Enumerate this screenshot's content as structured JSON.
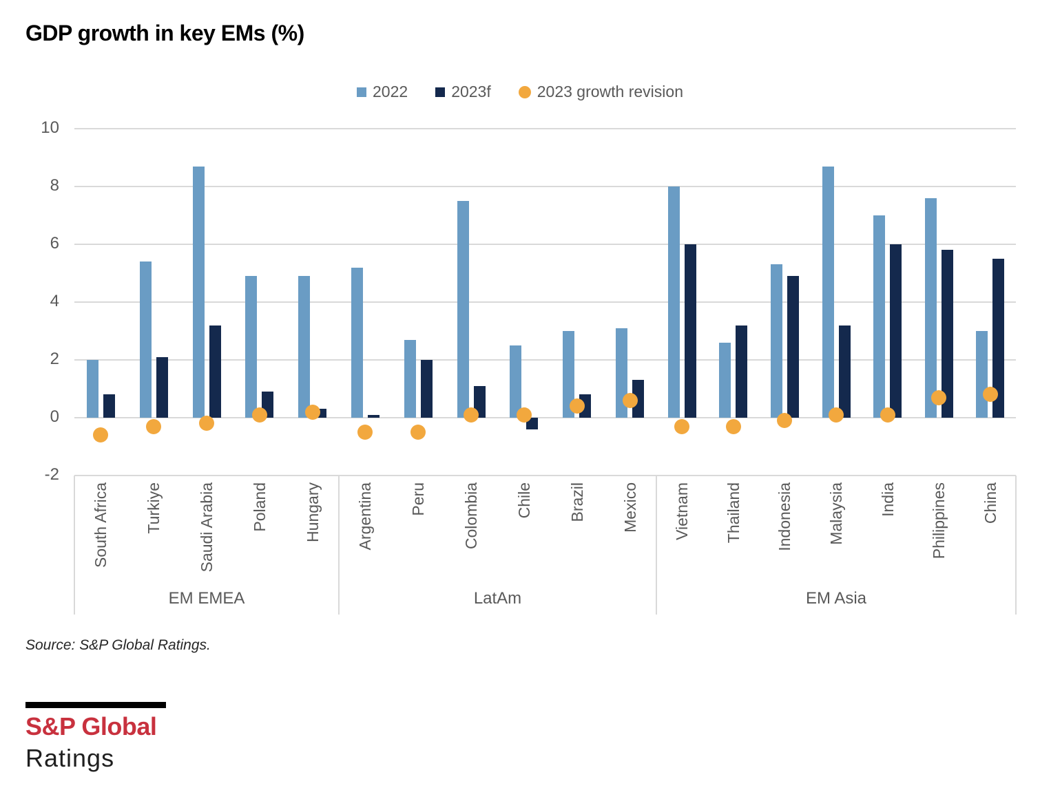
{
  "title": "GDP growth in key EMs (%)",
  "legend": [
    {
      "label": "2022",
      "color": "#6A9CC4",
      "shape": "square"
    },
    {
      "label": "2023f",
      "color": "#14294D",
      "shape": "square"
    },
    {
      "label": "2023 growth revision",
      "color": "#F2A83E",
      "shape": "circle"
    }
  ],
  "source": "Source: S&P Global Ratings.",
  "logo": {
    "line1": "S&P Global",
    "line2": "Ratings",
    "color": "#C8313E"
  },
  "colors": {
    "bar_2022": "#6A9CC4",
    "bar_2023f": "#14294D",
    "revision_dot": "#F2A83E",
    "gridline": "#D9D9D9",
    "axis_text": "#595959"
  },
  "chart_data": {
    "type": "bar",
    "title": "GDP growth in key EMs (%)",
    "ylabel": "",
    "xlabel": "",
    "ylim": [
      -2,
      10
    ],
    "yticks": [
      10,
      8,
      6,
      4,
      2,
      0,
      -2
    ],
    "grid": true,
    "legend_position": "top",
    "groups": [
      {
        "region": "EM EMEA",
        "countries": [
          "South Africa",
          "Turkiye",
          "Saudi Arabia",
          "Poland",
          "Hungary"
        ]
      },
      {
        "region": "LatAm",
        "countries": [
          "Argentina",
          "Peru",
          "Colombia",
          "Chile",
          "Brazil",
          "Mexico"
        ]
      },
      {
        "region": "EM Asia",
        "countries": [
          "Vietnam",
          "Thailand",
          "Indonesia",
          "Malaysia",
          "India",
          "Philippines",
          "China"
        ]
      }
    ],
    "categories": [
      "South Africa",
      "Turkiye",
      "Saudi Arabia",
      "Poland",
      "Hungary",
      "Argentina",
      "Peru",
      "Colombia",
      "Chile",
      "Brazil",
      "Mexico",
      "Vietnam",
      "Thailand",
      "Indonesia",
      "Malaysia",
      "India",
      "Philippines",
      "China"
    ],
    "series": [
      {
        "name": "2022",
        "type": "bar",
        "color": "#6A9CC4",
        "values": [
          2.0,
          5.4,
          8.7,
          4.9,
          4.9,
          5.2,
          2.7,
          7.5,
          2.5,
          3.0,
          3.1,
          8.0,
          2.6,
          5.3,
          8.7,
          7.0,
          7.6,
          3.0
        ]
      },
      {
        "name": "2023f",
        "type": "bar",
        "color": "#14294D",
        "values": [
          0.8,
          2.1,
          3.2,
          0.9,
          0.3,
          0.1,
          2.0,
          1.1,
          -0.4,
          0.8,
          1.3,
          6.0,
          3.2,
          4.9,
          3.2,
          6.0,
          5.8,
          5.5
        ]
      },
      {
        "name": "2023 growth revision",
        "type": "point",
        "color": "#F2A83E",
        "values": [
          -0.6,
          -0.3,
          -0.2,
          0.1,
          0.2,
          -0.5,
          -0.5,
          0.1,
          0.1,
          0.4,
          0.6,
          -0.3,
          -0.3,
          -0.1,
          0.1,
          0.1,
          0.7,
          0.8
        ]
      }
    ]
  }
}
